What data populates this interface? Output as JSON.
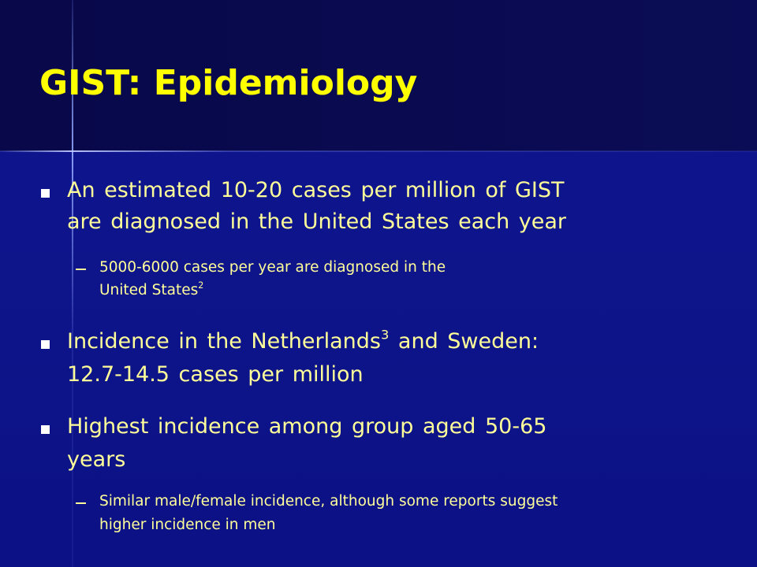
{
  "header": {
    "title": "GIST: Epidemiology"
  },
  "bullets": [
    {
      "text": [
        "An estimated 10-20 cases per million of GIST",
        "are diagnosed in the United States each year"
      ],
      "subs": [
        {
          "text": [
            "5000-6000 cases per year are diagnosed in the",
            "United States"
          ],
          "ref": "2"
        }
      ]
    },
    {
      "text": [
        "Incidence in the Netherlands",
        "and Sweden:",
        "12.7-14.5 cases per million"
      ],
      "ref": "3"
    },
    {
      "text": [
        "Highest incidence among group aged 50-65",
        "years"
      ],
      "subs": [
        {
          "text": [
            "Similar male/female incidence, although some reports suggest",
            "higher incidence in men"
          ]
        }
      ]
    }
  ]
}
